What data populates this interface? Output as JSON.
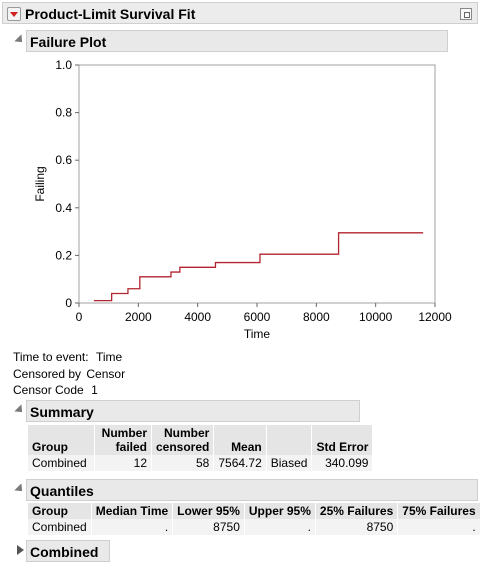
{
  "report": {
    "title": "Product-Limit Survival Fit"
  },
  "failure_plot": {
    "header": "Failure Plot"
  },
  "chart_data": {
    "type": "line",
    "xlabel": "Time",
    "ylabel": "Failing",
    "xlim": [
      0,
      12000
    ],
    "ylim": [
      0,
      1.0
    ],
    "x_ticks": [
      "0",
      "2000",
      "4000",
      "6000",
      "8000",
      "10000",
      "12000"
    ],
    "y_ticks": [
      "0",
      "0.2",
      "0.4",
      "0.6",
      "0.8",
      "1.0"
    ],
    "grid": false,
    "series": [
      {
        "color": "#b2242f",
        "step_x": [
          500,
          1100,
          1650,
          2050,
          3100,
          3400,
          4600,
          6100,
          8750,
          11600
        ],
        "step_y": [
          0.01,
          0.04,
          0.06,
          0.11,
          0.13,
          0.15,
          0.17,
          0.205,
          0.295,
          0.295
        ]
      }
    ]
  },
  "info": {
    "time_label": "Time to event:",
    "time_value": "Time",
    "censor_label": "Censored by",
    "censor_value": "Censor",
    "code_label": "Censor Code",
    "code_value": "1"
  },
  "summary": {
    "header": "Summary",
    "columns": [
      "Group",
      "Number failed",
      "Number censored",
      "Mean",
      "",
      "Std Error"
    ],
    "col_line1": [
      "",
      "Number",
      "Number",
      "",
      "",
      ""
    ],
    "col_line2": [
      "Group",
      "failed",
      "censored",
      "Mean",
      "",
      "Std Error"
    ],
    "row": [
      "Combined",
      "12",
      "58",
      "7564.72",
      "Biased",
      "340.099"
    ]
  },
  "quantiles": {
    "header": "Quantiles",
    "columns": [
      "Group",
      "Median Time",
      "Lower 95%",
      "Upper 95%",
      "25% Failures",
      "75% Failures"
    ],
    "row": [
      "Combined",
      ".",
      "8750",
      ".",
      "8750",
      "."
    ]
  },
  "combined": {
    "header": "Combined"
  }
}
